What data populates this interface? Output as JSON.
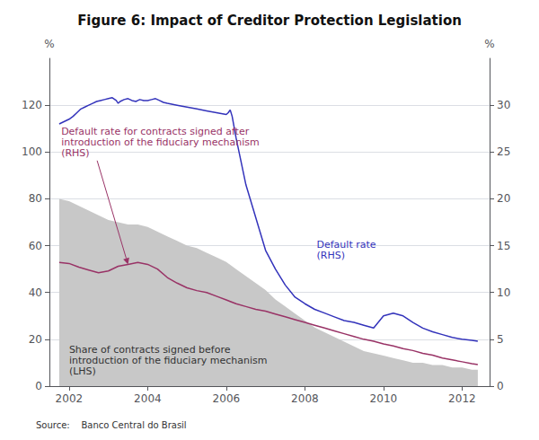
{
  "chart_data": {
    "type": "line",
    "title": "Figure 6: Impact of Creditor Protection Legislation",
    "source": "Source:    Banco Central do Brasil",
    "xlim": [
      2001.5,
      2012.7
    ],
    "xticks": [
      2002,
      2004,
      2006,
      2008,
      2010,
      2012
    ],
    "ylim": [
      0,
      140
    ],
    "yticks": [
      0,
      20,
      40,
      60,
      80,
      100,
      120
    ],
    "y2lim": [
      0,
      35
    ],
    "y2ticks": [
      0,
      5,
      10,
      15,
      20,
      25,
      30
    ],
    "ylabel": "%",
    "y2label": "%",
    "grid": true,
    "series": [
      {
        "type": "area",
        "axis": "y",
        "color": "#c8c8c8",
        "x": [
          2001.75,
          2002.0,
          2002.25,
          2002.5,
          2002.75,
          2003.0,
          2003.25,
          2003.5,
          2003.75,
          2004.0,
          2004.25,
          2004.5,
          2004.75,
          2005.0,
          2005.25,
          2005.5,
          2005.75,
          2006.0,
          2006.25,
          2006.5,
          2006.75,
          2007.0,
          2007.25,
          2007.5,
          2007.75,
          2008.0,
          2008.25,
          2008.5,
          2008.75,
          2009.0,
          2009.25,
          2009.5,
          2009.75,
          2010.0,
          2010.25,
          2010.5,
          2010.75,
          2011.0,
          2011.25,
          2011.5,
          2011.75,
          2012.0,
          2012.25,
          2012.4
        ],
        "values": [
          80,
          79,
          77,
          75,
          73,
          71,
          70,
          69,
          69,
          68,
          66,
          64,
          62,
          60,
          59,
          57,
          55,
          53,
          50,
          47,
          44,
          41,
          37,
          34,
          31,
          28,
          25,
          23,
          21,
          19,
          17,
          15,
          14,
          13,
          12,
          11,
          10,
          10,
          9,
          9,
          8,
          8,
          7,
          7
        ]
      },
      {
        "type": "line",
        "axis": "y2",
        "color": "#993366",
        "x": [
          2001.75,
          2002.0,
          2002.25,
          2002.5,
          2002.75,
          2003.0,
          2003.25,
          2003.5,
          2003.75,
          2004.0,
          2004.25,
          2004.5,
          2004.75,
          2005.0,
          2005.25,
          2005.5,
          2005.75,
          2006.0,
          2006.25,
          2006.5,
          2006.75,
          2007.0,
          2007.25,
          2007.5,
          2007.75,
          2008.0,
          2008.25,
          2008.5,
          2008.75,
          2009.0,
          2009.25,
          2009.5,
          2009.75,
          2010.0,
          2010.25,
          2010.5,
          2010.75,
          2011.0,
          2011.25,
          2011.5,
          2011.75,
          2012.0,
          2012.25,
          2012.4
        ],
        "values": [
          13.2,
          13.1,
          12.7,
          12.4,
          12.1,
          12.3,
          12.8,
          13.0,
          13.2,
          13.0,
          12.5,
          11.6,
          11.0,
          10.5,
          10.2,
          10.0,
          9.6,
          9.2,
          8.8,
          8.5,
          8.2,
          8.0,
          7.7,
          7.4,
          7.1,
          6.8,
          6.5,
          6.2,
          5.9,
          5.6,
          5.3,
          5.0,
          4.8,
          4.5,
          4.3,
          4.0,
          3.8,
          3.5,
          3.3,
          3.0,
          2.8,
          2.6,
          2.4,
          2.3
        ]
      },
      {
        "type": "line",
        "axis": "y2",
        "color": "#3333bb",
        "x": [
          2001.75,
          2002.0,
          2002.1,
          2002.2,
          2002.3,
          2002.4,
          2002.5,
          2002.6,
          2002.7,
          2002.8,
          2002.9,
          2003.0,
          2003.1,
          2003.2,
          2003.25,
          2003.3,
          2003.4,
          2003.5,
          2003.6,
          2003.7,
          2003.75,
          2003.8,
          2003.9,
          2004.0,
          2004.1,
          2004.2,
          2004.3,
          2004.4,
          2004.5,
          2004.75,
          2005.0,
          2005.25,
          2005.5,
          2005.75,
          2006.0,
          2006.05,
          2006.1,
          2006.15,
          2006.25,
          2006.5,
          2006.75,
          2007.0,
          2007.25,
          2007.5,
          2007.75,
          2008.0,
          2008.25,
          2008.5,
          2008.75,
          2009.0,
          2009.25,
          2009.5,
          2009.75,
          2010.0,
          2010.25,
          2010.5,
          2010.75,
          2011.0,
          2011.25,
          2011.5,
          2011.75,
          2012.0,
          2012.25,
          2012.4
        ],
        "values": [
          28,
          28.5,
          28.8,
          29.2,
          29.6,
          29.8,
          30.0,
          30.2,
          30.4,
          30.5,
          30.6,
          30.7,
          30.8,
          30.5,
          30.2,
          30.4,
          30.6,
          30.7,
          30.5,
          30.4,
          30.5,
          30.6,
          30.5,
          30.5,
          30.6,
          30.7,
          30.5,
          30.3,
          30.2,
          30.0,
          29.8,
          29.6,
          29.4,
          29.2,
          29.0,
          29.2,
          29.5,
          28.8,
          26.5,
          21.5,
          18.0,
          14.5,
          12.5,
          10.8,
          9.5,
          8.8,
          8.2,
          7.8,
          7.4,
          7.0,
          6.8,
          6.5,
          6.2,
          7.5,
          7.8,
          7.5,
          6.8,
          6.2,
          5.8,
          5.5,
          5.2,
          5.0,
          4.9,
          4.8
        ]
      }
    ],
    "annotations": [
      {
        "text": "Default rate\n(RHS)",
        "x": 2008.3,
        "y": 14.5,
        "axis": "y2",
        "color": "#3333bb"
      },
      {
        "text": "Default rate for contracts signed after\nintroduction of the fiduciary mechanism\n(RHS)",
        "x": 2001.8,
        "y": 26.0,
        "axis": "y2",
        "color": "#993366",
        "arrow_to": [
          2003.5,
          13.0
        ]
      },
      {
        "text": "Share of contracts signed before\nintroduction of the fiduciary mechanism\n(LHS)",
        "x": 2002.0,
        "y": 18.0,
        "axis": "y",
        "color": "#333333"
      }
    ]
  }
}
